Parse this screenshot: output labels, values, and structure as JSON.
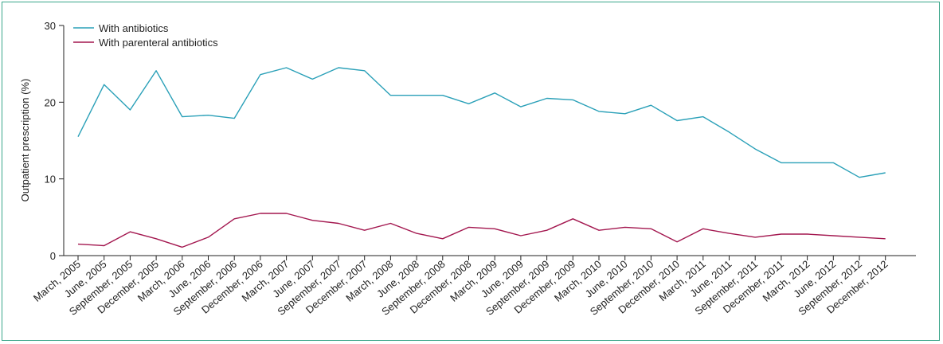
{
  "chart_data": {
    "type": "line",
    "ylabel": "Outpatient prescription (%)",
    "xlabel": "",
    "ylim": [
      0,
      30
    ],
    "yticks": [
      0,
      10,
      20,
      30
    ],
    "grid": false,
    "legend_position": "top-left",
    "categories": [
      "March, 2005",
      "June, 2005",
      "September, 2005",
      "December, 2005",
      "March, 2006",
      "June, 2006",
      "September, 2006",
      "December, 2006",
      "March, 2007",
      "June, 2007",
      "September, 2007",
      "December, 2007",
      "March, 2008",
      "June, 2008",
      "September, 2008",
      "December, 2008",
      "March, 2009",
      "June, 2009",
      "September, 2009",
      "December, 2009",
      "March, 2010",
      "June, 2010",
      "September, 2010",
      "December, 2010",
      "March, 2011",
      "June, 2011",
      "September, 2011",
      "December, 2011",
      "March, 2012",
      "June, 2012",
      "September, 2012",
      "December, 2012"
    ],
    "series": [
      {
        "name": "With antibiotics",
        "color": "#2aa0b8",
        "values": [
          15.5,
          22.3,
          19.0,
          24.1,
          18.1,
          18.3,
          17.9,
          23.6,
          24.5,
          23.0,
          24.5,
          24.1,
          20.9,
          20.9,
          20.9,
          19.8,
          21.2,
          19.4,
          20.5,
          20.3,
          18.8,
          18.5,
          19.6,
          17.6,
          18.1,
          16.1,
          13.9,
          12.1,
          12.1,
          12.1,
          10.2,
          10.8
        ]
      },
      {
        "name": "With parenteral antibiotics",
        "color": "#a3174f",
        "values": [
          1.5,
          1.3,
          3.1,
          2.2,
          1.1,
          2.4,
          4.8,
          5.5,
          5.5,
          4.6,
          4.2,
          3.3,
          4.2,
          2.9,
          2.2,
          3.7,
          3.5,
          2.6,
          3.3,
          4.8,
          3.3,
          3.7,
          3.5,
          1.8,
          3.5,
          2.9,
          2.4,
          2.8,
          2.8,
          2.6,
          2.4,
          2.2
        ]
      }
    ]
  },
  "colors": {
    "frame": "#3aa68a",
    "axis": "#222222"
  }
}
